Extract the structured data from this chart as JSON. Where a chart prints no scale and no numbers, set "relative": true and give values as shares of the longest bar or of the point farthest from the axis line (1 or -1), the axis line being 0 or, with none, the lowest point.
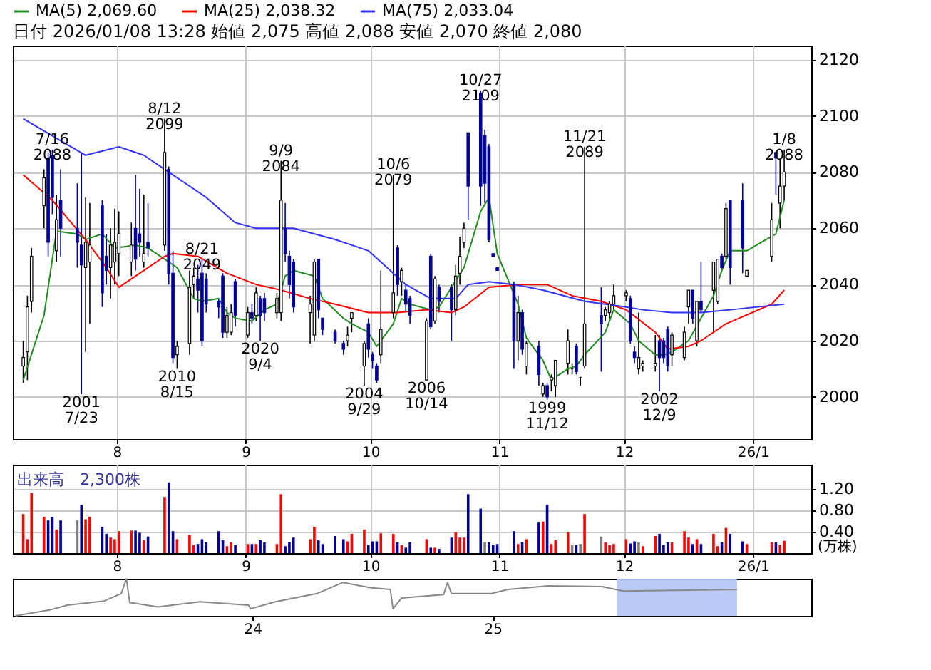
{
  "chart_data": [
    {
      "type": "candlestick",
      "title": "日付 2026/01/08 13:28 始値 2,075 高値 2,088 安値 2,070 終値 2,080",
      "x": [
        "2025-07-09",
        "2025-07-10",
        "2025-07-11",
        "2025-07-14",
        "2025-07-15",
        "2025-07-16",
        "2025-07-17",
        "2025-07-18",
        "2025-07-22",
        "2025-07-23",
        "2025-07-24",
        "2025-07-25",
        "2025-07-28",
        "2025-07-29",
        "2025-07-30",
        "2025-07-31",
        "2025-08-01",
        "2025-08-04",
        "2025-08-05",
        "2025-08-06",
        "2025-08-07",
        "2025-08-08",
        "2025-08-12",
        "2025-08-13",
        "2025-08-14",
        "2025-08-15",
        "2025-08-18",
        "2025-08-19",
        "2025-08-20",
        "2025-08-21",
        "2025-08-22",
        "2025-08-25",
        "2025-08-26",
        "2025-08-27",
        "2025-08-28",
        "2025-08-29",
        "2025-09-01",
        "2025-09-02",
        "2025-09-03",
        "2025-09-04",
        "2025-09-05",
        "2025-09-08",
        "2025-09-09",
        "2025-09-10",
        "2025-09-11",
        "2025-09-12",
        "2025-09-16",
        "2025-09-17",
        "2025-09-18",
        "2025-09-19",
        "2025-09-22",
        "2025-09-24",
        "2025-09-25",
        "2025-09-26",
        "2025-09-29",
        "2025-09-30",
        "2025-10-01",
        "2025-10-02",
        "2025-10-03",
        "2025-10-06",
        "2025-10-07",
        "2025-10-08",
        "2025-10-09",
        "2025-10-10",
        "2025-10-14",
        "2025-10-15",
        "2025-10-16",
        "2025-10-17",
        "2025-10-20",
        "2025-10-21",
        "2025-10-22",
        "2025-10-23",
        "2025-10-24",
        "2025-10-27",
        "2025-10-28",
        "2025-10-29",
        "2025-10-30",
        "2025-10-31",
        "2025-11-04",
        "2025-11-05",
        "2025-11-06",
        "2025-11-07",
        "2025-11-10",
        "2025-11-11",
        "2025-11-12",
        "2025-11-13",
        "2025-11-14",
        "2025-11-17",
        "2025-11-18",
        "2025-11-19",
        "2025-11-20",
        "2025-11-21",
        "2025-11-25",
        "2025-11-26",
        "2025-11-27",
        "2025-11-28",
        "2025-12-01",
        "2025-12-02",
        "2025-12-03",
        "2025-12-04",
        "2025-12-05",
        "2025-12-08",
        "2025-12-09",
        "2025-12-10",
        "2025-12-11",
        "2025-12-12",
        "2025-12-15",
        "2025-12-16",
        "2025-12-17",
        "2025-12-18",
        "2025-12-19",
        "2025-12-22",
        "2025-12-23",
        "2025-12-24",
        "2025-12-25",
        "2025-12-26",
        "2025-12-29",
        "2025-12-30",
        "2026-01-05",
        "2026-01-06",
        "2026-01-07",
        "2026-01-08"
      ],
      "ohlc": [
        [
          2011,
          2020,
          2005,
          2014
        ],
        [
          2016,
          2036,
          2006,
          2032
        ],
        [
          2034,
          2053,
          2030,
          2050
        ],
        [
          2068,
          2081,
          2060,
          2078
        ],
        [
          2085,
          2087,
          2050,
          2055
        ],
        [
          2086,
          2088,
          2065,
          2071
        ],
        [
          2052,
          2072,
          2048,
          2063
        ],
        [
          2070,
          2081,
          2050,
          2060
        ],
        [
          2060,
          2076,
          2046,
          2055
        ],
        [
          2054,
          2087,
          2001,
          2047
        ],
        [
          2046,
          2071,
          2016,
          2055
        ],
        [
          2048,
          2069,
          2026,
          2054
        ],
        [
          2068,
          2070,
          2032,
          2037
        ],
        [
          2050,
          2058,
          2040,
          2045
        ],
        [
          2046,
          2060,
          2035,
          2054
        ],
        [
          2048,
          2067,
          2040,
          2055
        ],
        [
          2051,
          2066,
          2043,
          2058
        ],
        [
          2048,
          2062,
          2043,
          2054
        ],
        [
          2060,
          2079,
          2045,
          2049
        ],
        [
          2058,
          2074,
          2050,
          2055
        ],
        [
          2048,
          2072,
          2046,
          2051
        ],
        [
          2055,
          2069,
          2050,
          2053
        ],
        [
          2054,
          2099,
          2052,
          2087
        ],
        [
          2081,
          2082,
          2040,
          2044
        ],
        [
          2044,
          2052,
          2012,
          2014
        ],
        [
          2015,
          2020,
          2010,
          2018
        ],
        [
          2019,
          2045,
          2015,
          2039
        ],
        [
          2040,
          2046,
          2035,
          2043
        ],
        [
          2042,
          2047,
          2030,
          2038
        ],
        [
          2044,
          2049,
          2018,
          2020
        ],
        [
          2042,
          2044,
          2030,
          2033
        ],
        [
          2034,
          2035,
          2028,
          2032
        ],
        [
          2043,
          2044,
          2021,
          2023
        ],
        [
          2023,
          2032,
          2021,
          2029
        ],
        [
          2023,
          2033,
          2022,
          2030
        ],
        [
          2041,
          2042,
          2025,
          2029
        ],
        [
          2022,
          2032,
          2021,
          2030
        ],
        [
          2030,
          2033,
          2026,
          2028
        ],
        [
          2029,
          2039,
          2027,
          2037
        ],
        [
          2035,
          2036,
          2020,
          2029
        ],
        [
          2035,
          2037,
          2027,
          2030
        ],
        [
          2030,
          2037,
          2028,
          2035
        ],
        [
          2030,
          2084,
          2027,
          2070
        ],
        [
          2060,
          2069,
          2048,
          2051
        ],
        [
          2050,
          2052,
          2035,
          2040
        ],
        [
          2048,
          2049,
          2030,
          2032
        ],
        [
          2030,
          2036,
          2019,
          2033
        ],
        [
          2022,
          2049,
          2020,
          2048
        ],
        [
          2049,
          2049,
          2028,
          2031
        ],
        [
          2028,
          2028,
          2022,
          2024
        ],
        [
          2023,
          2024,
          2019,
          2020
        ],
        [
          2019,
          2020,
          2015,
          2017
        ],
        [
          2020,
          2025,
          2018,
          2022
        ],
        [
          2028,
          2030,
          2023,
          2030
        ],
        [
          2011,
          2020,
          2004,
          2019
        ],
        [
          2026,
          2028,
          2014,
          2017
        ],
        [
          2015,
          2016,
          2010,
          2013
        ],
        [
          2011,
          2012,
          2005,
          2006
        ],
        [
          2015,
          2045,
          2012,
          2024
        ],
        [
          2030,
          2079,
          2028,
          2037
        ],
        [
          2053,
          2054,
          2036,
          2040
        ],
        [
          2041,
          2046,
          2036,
          2045
        ],
        [
          2038,
          2040,
          2030,
          2033
        ],
        [
          2035,
          2036,
          2026,
          2029
        ],
        [
          2006,
          2028,
          2006,
          2027
        ],
        [
          2050,
          2051,
          2024,
          2025
        ],
        [
          2027,
          2043,
          2026,
          2042
        ],
        [
          2039,
          2040,
          2030,
          2034
        ],
        [
          2039,
          2040,
          2020,
          2031
        ],
        [
          2031,
          2047,
          2029,
          2043
        ],
        [
          2044,
          2057,
          2040,
          2050
        ],
        [
          2055,
          2062,
          2053,
          2060
        ],
        [
          2094,
          2094,
          2063,
          2075
        ],
        [
          2108,
          2109,
          2068,
          2075
        ],
        [
          2093,
          2095,
          2069,
          2076
        ],
        [
          2089,
          2090,
          2055,
          2056
        ],
        [
          2051,
          2051,
          2050,
          2050
        ],
        [
          2046,
          2046,
          2045,
          2045
        ],
        [
          2040,
          2041,
          2010,
          2020
        ],
        [
          2020,
          2036,
          2013,
          2030
        ],
        [
          2030,
          2031,
          2015,
          2017
        ],
        [
          2011,
          2020,
          2008,
          2019
        ],
        [
          2018,
          2020,
          2004,
          2008
        ],
        [
          2001,
          2005,
          2000,
          2004
        ],
        [
          2004,
          2005,
          1999,
          2000
        ],
        [
          2006,
          2008,
          2002,
          2007
        ],
        [
          2004,
          2013,
          2000,
          2013
        ],
        [
          2012,
          2024,
          2008,
          2020
        ],
        [
          2010,
          2012,
          2008,
          2010
        ],
        [
          2018,
          2019,
          2008,
          2009
        ],
        [
          2007,
          2007,
          2004,
          2007
        ],
        [
          2011,
          2089,
          2010,
          2026
        ],
        [
          2029,
          2039,
          2009,
          2026
        ],
        [
          2029,
          2032,
          2027,
          2031
        ],
        [
          2030,
          2034,
          2028,
          2033
        ],
        [
          2033,
          2040,
          2031,
          2036
        ],
        [
          2036,
          2038,
          2034,
          2037
        ],
        [
          2035,
          2036,
          2019,
          2020
        ],
        [
          2016,
          2018,
          2012,
          2014
        ],
        [
          2010,
          2030,
          2008,
          2014
        ],
        [
          2011,
          2013,
          2009,
          2012
        ],
        [
          2011,
          2022,
          2009,
          2012
        ],
        [
          2020,
          2022,
          2002,
          2014
        ],
        [
          2020,
          2021,
          2012,
          2014
        ],
        [
          2024,
          2025,
          2009,
          2011
        ],
        [
          2015,
          2023,
          2011,
          2022
        ],
        [
          2014,
          2025,
          2013,
          2023
        ],
        [
          2032,
          2038,
          2026,
          2038
        ],
        [
          2038,
          2038,
          2026,
          2028
        ],
        [
          2020,
          2034,
          2018,
          2034
        ],
        [
          2034,
          2048,
          2030,
          2031
        ],
        [
          2038,
          2048,
          2023,
          2048
        ],
        [
          2034,
          2049,
          2033,
          2049
        ],
        [
          2050,
          2051,
          2045,
          2046
        ],
        [
          2050,
          2069,
          2049,
          2067
        ],
        [
          2070,
          2070,
          2040,
          2046
        ],
        [
          2070,
          2076,
          2044,
          2053
        ],
        [
          2043,
          2045,
          2043,
          2045
        ],
        [
          2050,
          2069,
          2048,
          2063
        ],
        [
          2087,
          2087,
          2072,
          2085
        ],
        [
          2069,
          2085,
          2060,
          2075
        ],
        [
          2075,
          2088,
          2070,
          2080
        ]
      ],
      "series": [
        {
          "name": "MA(5) 2,069.60",
          "color": "#228b22",
          "type": "line",
          "x": [
            "2025-07-09",
            "2025-07-14",
            "2025-07-17",
            "2025-07-22",
            "2025-07-24",
            "2025-07-28",
            "2025-07-31",
            "2025-08-05",
            "2025-08-08",
            "2025-08-15",
            "2025-08-19",
            "2025-08-21",
            "2025-08-25",
            "2025-08-27",
            "2025-08-29",
            "2025-09-02",
            "2025-09-05",
            "2025-09-08",
            "2025-09-10",
            "2025-09-12",
            "2025-09-17",
            "2025-09-19",
            "2025-09-24",
            "2025-09-26",
            "2025-09-30",
            "2025-10-02",
            "2025-10-06",
            "2025-10-08",
            "2025-10-10",
            "2025-10-15",
            "2025-10-17",
            "2025-10-23",
            "2025-10-27",
            "2025-10-29",
            "2025-10-31",
            "2025-11-05",
            "2025-11-07",
            "2025-11-11",
            "2025-11-13",
            "2025-11-17",
            "2025-11-19",
            "2025-11-21",
            "2025-11-26",
            "2025-11-28",
            "2025-12-02",
            "2025-12-04",
            "2025-12-08",
            "2025-12-10",
            "2025-12-12",
            "2025-12-16",
            "2025-12-22",
            "2025-12-24",
            "2025-12-26",
            "2025-12-30",
            "2026-01-06",
            "2026-01-08"
          ],
          "values": [
            2006,
            2029,
            2059,
            2058,
            2056,
            2058,
            2053,
            2054,
            2053,
            2046,
            2035,
            2034,
            2035,
            2030,
            2028,
            2027,
            2031,
            2033,
            2043,
            2045,
            2043,
            2035,
            2028,
            2026,
            2023,
            2018,
            2026,
            2035,
            2033,
            2031,
            2032,
            2046,
            2066,
            2071,
            2051,
            2033,
            2021,
            2013,
            2006,
            2010,
            2011,
            2015,
            2023,
            2031,
            2026,
            2020,
            2015,
            2015,
            2016,
            2020,
            2036,
            2045,
            2052,
            2052,
            2058,
            2070
          ]
        },
        {
          "name": "MA(25) 2,038.32",
          "color": "#ff0000",
          "type": "line",
          "x": [
            "2025-07-09",
            "2025-07-16",
            "2025-07-24",
            "2025-07-29",
            "2025-08-01",
            "2025-08-05",
            "2025-08-12",
            "2025-08-14",
            "2025-08-20",
            "2025-08-27",
            "2025-09-03",
            "2025-09-09",
            "2025-09-16",
            "2025-09-22",
            "2025-09-30",
            "2025-10-07",
            "2025-10-14",
            "2025-10-20",
            "2025-10-23",
            "2025-10-29",
            "2025-11-05",
            "2025-11-12",
            "2025-11-18",
            "2025-11-25",
            "2025-12-01",
            "2025-12-08",
            "2025-12-11",
            "2025-12-16",
            "2025-12-19",
            "2025-12-25",
            "2026-01-05",
            "2026-01-08"
          ],
          "values": [
            2079,
            2070,
            2056,
            2046,
            2039,
            2043,
            2050,
            2051,
            2050,
            2044,
            2040,
            2038,
            2035,
            2033,
            2030,
            2030,
            2031,
            2030,
            2032,
            2039,
            2040,
            2040,
            2036,
            2034,
            2031,
            2023,
            2017,
            2018,
            2020,
            2026,
            2033,
            2038
          ]
        },
        {
          "name": "MA(75) 2,033.04",
          "color": "#3333ff",
          "type": "line",
          "x": [
            "2025-07-09",
            "2025-07-24",
            "2025-08-01",
            "2025-08-07",
            "2025-08-15",
            "2025-08-22",
            "2025-08-29",
            "2025-09-03",
            "2025-09-12",
            "2025-09-22",
            "2025-09-30",
            "2025-10-03",
            "2025-10-09",
            "2025-10-15",
            "2025-10-21",
            "2025-10-24",
            "2025-10-29",
            "2025-11-04",
            "2025-11-11",
            "2025-11-21",
            "2025-12-01",
            "2025-12-05",
            "2025-12-12",
            "2025-12-19",
            "2025-12-26",
            "2026-01-08"
          ],
          "values": [
            2099,
            2086,
            2089,
            2086,
            2078,
            2071,
            2062,
            2060,
            2060,
            2056,
            2052,
            2048,
            2040,
            2035,
            2035,
            2040,
            2041,
            2040,
            2038,
            2034,
            2032,
            2031,
            2030,
            2030,
            2031,
            2033
          ]
        }
      ],
      "annotations": [
        {
          "text": "7/16\n2088",
          "x": "2025-07-16",
          "y": 2088
        },
        {
          "text": "2001\n7/23",
          "x": "2025-07-23",
          "y": 2001
        },
        {
          "text": "8/12\n2099",
          "x": "2025-08-12",
          "y": 2099
        },
        {
          "text": "2010\n8/15",
          "x": "2025-08-15",
          "y": 2010
        },
        {
          "text": "8/21\n2049",
          "x": "2025-08-21",
          "y": 2049
        },
        {
          "text": "2020\n9/4",
          "x": "2025-09-04",
          "y": 2020
        },
        {
          "text": "9/9\n2084",
          "x": "2025-09-09",
          "y": 2084
        },
        {
          "text": "2004\n9/29",
          "x": "2025-09-29",
          "y": 2004
        },
        {
          "text": "10/6\n2079",
          "x": "2025-10-06",
          "y": 2079
        },
        {
          "text": "2006\n10/14",
          "x": "2025-10-14",
          "y": 2006
        },
        {
          "text": "10/27\n2109",
          "x": "2025-10-27",
          "y": 2109
        },
        {
          "text": "1999\n11/12",
          "x": "2025-11-12",
          "y": 1999
        },
        {
          "text": "11/21\n2089",
          "x": "2025-11-21",
          "y": 2089
        },
        {
          "text": "2002\n12/9",
          "x": "2025-12-09",
          "y": 2002
        },
        {
          "text": "1/8\n2088",
          "x": "2026-01-08",
          "y": 2088
        }
      ],
      "xlim": [
        "2025-07-07",
        "2026-01-15"
      ],
      "xticks": [
        {
          "value": "2025-08-01",
          "label": "8"
        },
        {
          "value": "2025-09-01",
          "label": "9"
        },
        {
          "value": "2025-10-01",
          "label": "10"
        },
        {
          "value": "2025-11-01",
          "label": "11"
        },
        {
          "value": "2025-12-01",
          "label": "12"
        },
        {
          "value": "2026-01-01",
          "label": "26/1"
        }
      ],
      "ylim": [
        1985,
        2125
      ],
      "yticks": [
        2000,
        2020,
        2040,
        2060,
        2080,
        2100,
        2120
      ],
      "grid": true,
      "legend": "top",
      "marker": "none"
    },
    {
      "type": "bar",
      "title": "出来高　2,300株",
      "ylabel": "(万株)",
      "x": [
        "2025-07-09",
        "2025-07-10",
        "2025-07-11",
        "2025-07-14",
        "2025-07-15",
        "2025-07-16",
        "2025-07-17",
        "2025-07-18",
        "2025-07-22",
        "2025-07-23",
        "2025-07-24",
        "2025-07-25",
        "2025-07-28",
        "2025-07-29",
        "2025-07-30",
        "2025-07-31",
        "2025-08-01",
        "2025-08-04",
        "2025-08-05",
        "2025-08-06",
        "2025-08-07",
        "2025-08-08",
        "2025-08-12",
        "2025-08-13",
        "2025-08-14",
        "2025-08-15",
        "2025-08-18",
        "2025-08-19",
        "2025-08-20",
        "2025-08-21",
        "2025-08-22",
        "2025-08-25",
        "2025-08-26",
        "2025-08-27",
        "2025-08-28",
        "2025-08-29",
        "2025-09-01",
        "2025-09-02",
        "2025-09-03",
        "2025-09-04",
        "2025-09-05",
        "2025-09-08",
        "2025-09-09",
        "2025-09-10",
        "2025-09-11",
        "2025-09-12",
        "2025-09-16",
        "2025-09-17",
        "2025-09-18",
        "2025-09-19",
        "2025-09-22",
        "2025-09-24",
        "2025-09-25",
        "2025-09-26",
        "2025-09-29",
        "2025-09-30",
        "2025-10-01",
        "2025-10-02",
        "2025-10-03",
        "2025-10-06",
        "2025-10-07",
        "2025-10-08",
        "2025-10-09",
        "2025-10-10",
        "2025-10-14",
        "2025-10-15",
        "2025-10-16",
        "2025-10-17",
        "2025-10-20",
        "2025-10-21",
        "2025-10-22",
        "2025-10-23",
        "2025-10-24",
        "2025-10-27",
        "2025-10-28",
        "2025-10-29",
        "2025-10-30",
        "2025-10-31",
        "2025-11-04",
        "2025-11-05",
        "2025-11-06",
        "2025-11-07",
        "2025-11-10",
        "2025-11-11",
        "2025-11-12",
        "2025-11-13",
        "2025-11-14",
        "2025-11-17",
        "2025-11-18",
        "2025-11-19",
        "2025-11-20",
        "2025-11-21",
        "2025-11-25",
        "2025-11-26",
        "2025-11-27",
        "2025-11-28",
        "2025-12-01",
        "2025-12-02",
        "2025-12-03",
        "2025-12-04",
        "2025-12-05",
        "2025-12-08",
        "2025-12-09",
        "2025-12-10",
        "2025-12-11",
        "2025-12-12",
        "2025-12-15",
        "2025-12-16",
        "2025-12-17",
        "2025-12-18",
        "2025-12-19",
        "2025-12-22",
        "2025-12-23",
        "2025-12-24",
        "2025-12-25",
        "2025-12-26",
        "2025-12-29",
        "2025-12-30",
        "2026-01-05",
        "2026-01-06",
        "2026-01-07",
        "2026-01-08"
      ],
      "values": [
        0.73,
        0.26,
        1.12,
        0.68,
        0.61,
        0.68,
        0.44,
        0.61,
        0.61,
        0.9,
        0.63,
        0.68,
        0.49,
        0.36,
        0.29,
        0.26,
        0.41,
        0.42,
        0.42,
        0.38,
        0.24,
        0.31,
        1.05,
        1.32,
        0.41,
        0.26,
        0.34,
        0.15,
        0.17,
        0.26,
        0.2,
        0.41,
        0.24,
        0.13,
        0.2,
        0.15,
        0.17,
        0.17,
        0.17,
        0.24,
        0.2,
        0.17,
        1.1,
        0.13,
        0.21,
        0.29,
        0.26,
        0.49,
        0.24,
        0.17,
        0.32,
        0.26,
        0.22,
        0.36,
        0.44,
        0.15,
        0.22,
        0.22,
        0.37,
        0.36,
        0.2,
        0.15,
        0.1,
        0.2,
        0.26,
        0.1,
        0.1,
        0.08,
        0.29,
        0.39,
        0.29,
        0.29,
        1.1,
        0.83,
        0.21,
        0.2,
        0.15,
        0.17,
        0.41,
        0.17,
        0.2,
        0.26,
        0.57,
        0.59,
        0.9,
        0.17,
        0.24,
        0.39,
        0.15,
        0.15,
        0.17,
        0.73,
        0.31,
        0.2,
        0.15,
        0.17,
        0.26,
        0.18,
        0.22,
        0.2,
        0.13,
        0.32,
        0.36,
        0.15,
        0.2,
        0.2,
        0.41,
        0.29,
        0.17,
        0.26,
        0.17,
        0.36,
        0.13,
        0.2,
        0.47,
        0.36,
        0.22,
        0.17,
        0.2,
        0.2,
        0.15,
        0.23
      ],
      "colors": [
        "#ff0000",
        "#ff0000",
        "#ff0000",
        "#ff0000",
        "#000099",
        "#000099",
        "#ff0000",
        "#000099",
        "#808080",
        "#000099",
        "#ff0000",
        "#ff0000",
        "#000099",
        "#000099",
        "#ff0000",
        "#ff0000",
        "#ff0000",
        "#ff0000",
        "#000099",
        "#000099",
        "#ff0000",
        "#000099",
        "#ff0000",
        "#000099",
        "#000099",
        "#ff0000",
        "#ff0000",
        "#ff0000",
        "#000099",
        "#000099",
        "#000099",
        "#000099",
        "#000099",
        "#ff0000",
        "#ff0000",
        "#000099",
        "#ff0000",
        "#000099",
        "#ff0000",
        "#000099",
        "#000099",
        "#ff0000",
        "#ff0000",
        "#000099",
        "#000099",
        "#000099",
        "#ff0000",
        "#ff0000",
        "#000099",
        "#000099",
        "#000099",
        "#000099",
        "#ff0000",
        "#ff0000",
        "#ff0000",
        "#000099",
        "#000099",
        "#000099",
        "#ff0000",
        "#ff0000",
        "#000099",
        "#ff0000",
        "#000099",
        "#000099",
        "#ff0000",
        "#000099",
        "#ff0000",
        "#000099",
        "#000099",
        "#ff0000",
        "#ff0000",
        "#ff0000",
        "#000099",
        "#000099",
        "#808080",
        "#000099",
        "#000099",
        "#000099",
        "#000099",
        "#ff0000",
        "#000099",
        "#ff0000",
        "#000099",
        "#ff0000",
        "#000099",
        "#ff0000",
        "#ff0000",
        "#ff0000",
        "#808080",
        "#000099",
        "#808080",
        "#ff0000",
        "#808080",
        "#ff0000",
        "#ff0000",
        "#ff0000",
        "#ff0000",
        "#000099",
        "#000099",
        "#808080",
        "#ff0000",
        "#ff0000",
        "#000099",
        "#000099",
        "#000099",
        "#ff0000",
        "#ff0000",
        "#ff0000",
        "#000099",
        "#ff0000",
        "#000099",
        "#ff0000",
        "#ff0000",
        "#000099",
        "#ff0000",
        "#000099",
        "#000099",
        "#ff0000",
        "#ff0000",
        "#000099",
        "#ff0000",
        "#ff0000"
      ],
      "xlim": [
        "2025-07-07",
        "2026-01-15"
      ],
      "xticks": [
        {
          "value": "2025-08-01",
          "label": "8"
        },
        {
          "value": "2025-09-01",
          "label": "9"
        },
        {
          "value": "2025-10-01",
          "label": "10"
        },
        {
          "value": "2025-11-01",
          "label": "11"
        },
        {
          "value": "2025-12-01",
          "label": "12"
        },
        {
          "value": "2026-01-01",
          "label": "26/1"
        }
      ],
      "ylim": [
        0,
        1.65
      ],
      "yticks": [
        {
          "value": 0.4,
          "label": "0.40"
        },
        {
          "value": 0.8,
          "label": "0.80"
        },
        {
          "value": 1.2,
          "label": "1.20"
        }
      ],
      "grid": true
    },
    {
      "type": "line",
      "relative": true,
      "tick_labels": "x",
      "series": [
        {
          "color": "#888888",
          "x": [
            "2023-01-05",
            "2023-03-01",
            "2023-03-25",
            "2023-05-20",
            "2023-06-15",
            "2023-06-23",
            "2023-06-28",
            "2023-08-10",
            "2023-10-13",
            "2023-12-26",
            "2023-12-29",
            "2024-02-05",
            "2024-04-08",
            "2024-05-18",
            "2024-06-28",
            "2024-07-29",
            "2024-08-02",
            "2024-08-15",
            "2024-10-18",
            "2024-10-24",
            "2024-10-30",
            "2024-12-30",
            "2025-01-24",
            "2025-03-27",
            "2025-06-16",
            "2025-07-19",
            "2026-01-08"
          ],
          "values": [
            0,
            0.17,
            0.29,
            0.4,
            0.6,
            1,
            0.36,
            0.24,
            0.38,
            0.29,
            0.19,
            0.38,
            0.6,
            0.9,
            0.76,
            0.71,
            0.19,
            0.48,
            0.57,
            0.9,
            0.6,
            0.6,
            0.71,
            0.81,
            0.79,
            0.67,
            0.71
          ]
        }
      ],
      "xlim": [
        "2023-01-01",
        "2026-05-01"
      ],
      "xticks": [
        {
          "value": "2024-01-01",
          "label": "24"
        },
        {
          "value": "2025-01-01",
          "label": "25"
        }
      ],
      "bands": [
        {
          "axis": "x",
          "from": "2025-07-09",
          "to": "2026-01-08",
          "color": "#b3c6f5"
        }
      ],
      "grid": false
    }
  ]
}
